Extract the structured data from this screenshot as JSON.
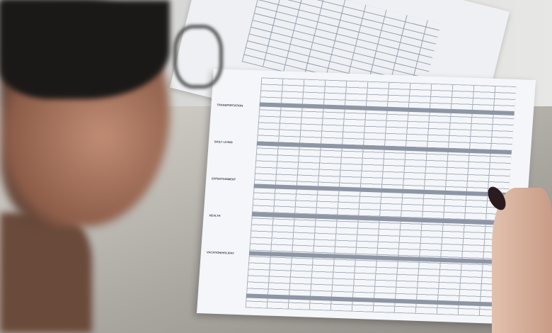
{
  "scene": "person reviewing printed budget spreadsheets",
  "sheet": {
    "sections": [
      "Transportation",
      "Daily Living",
      "Entertainment",
      "Health",
      "Vacation/Holiday"
    ]
  },
  "colors": {
    "paper": "#f4f6f9",
    "grid": "#a9b0bd",
    "table": "#b9b6b1",
    "hair": "#1b1918"
  }
}
